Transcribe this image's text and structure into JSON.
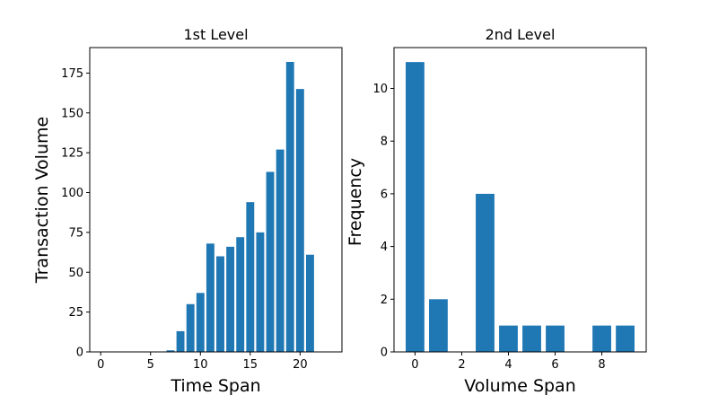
{
  "chart_data": [
    {
      "type": "bar",
      "title": "1st Level",
      "xlabel": "Time Span",
      "ylabel": "Transaction Volume",
      "color": "#1f77b4",
      "x": [
        7,
        8,
        9,
        10,
        11,
        12,
        13,
        14,
        15,
        16,
        17,
        18,
        19,
        20,
        21
      ],
      "values": [
        1,
        13,
        30,
        37,
        68,
        60,
        66,
        72,
        94,
        75,
        113,
        127,
        182,
        165,
        61
      ],
      "xlim": [
        -1.1,
        24.2
      ],
      "ylim": [
        0,
        191
      ],
      "xticks": [
        0,
        5,
        10,
        15,
        20
      ],
      "yticks": [
        0,
        25,
        50,
        75,
        100,
        125,
        150,
        175
      ],
      "grid": false
    },
    {
      "type": "bar",
      "title": "2nd Level",
      "xlabel": "Volume Span",
      "ylabel": "Frequency",
      "color": "#1f77b4",
      "x": [
        0,
        1,
        2,
        3,
        4,
        5,
        6,
        7,
        8,
        9
      ],
      "values": [
        11,
        2,
        0,
        6,
        1,
        1,
        1,
        0,
        1,
        1
      ],
      "xlim": [
        -0.9,
        9.9
      ],
      "ylim": [
        0,
        11.55
      ],
      "xticks": [
        0,
        2,
        4,
        6,
        8
      ],
      "yticks": [
        0,
        2,
        4,
        6,
        8,
        10
      ],
      "grid": false
    }
  ]
}
